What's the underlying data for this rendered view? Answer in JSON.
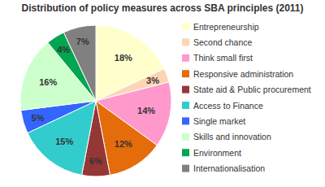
{
  "chart_data": {
    "type": "pie",
    "title": "Distribution of policy measures across SBA principles (2011)",
    "categories": [
      "Entrepreneurship",
      "Second chance",
      "Think small first",
      "Responsive administration",
      "State aid & Public procurement",
      "Access to Finance",
      "Single market",
      "Skills and innovation",
      "Environment",
      "Internationalisation"
    ],
    "values": [
      18,
      3,
      14,
      12,
      6,
      15,
      5,
      16,
      4,
      7
    ],
    "value_labels": [
      "18%",
      "3%",
      "14%",
      "12%",
      "6%",
      "15%",
      "5%",
      "16%",
      "4%",
      "7%"
    ],
    "colors": [
      "#ffffcc",
      "#fcd5b4",
      "#ff99cc",
      "#e46c0a",
      "#953735",
      "#33cccc",
      "#3366ff",
      "#ccffcc",
      "#00a650",
      "#808080"
    ],
    "data_labels": true,
    "legend": "right"
  }
}
